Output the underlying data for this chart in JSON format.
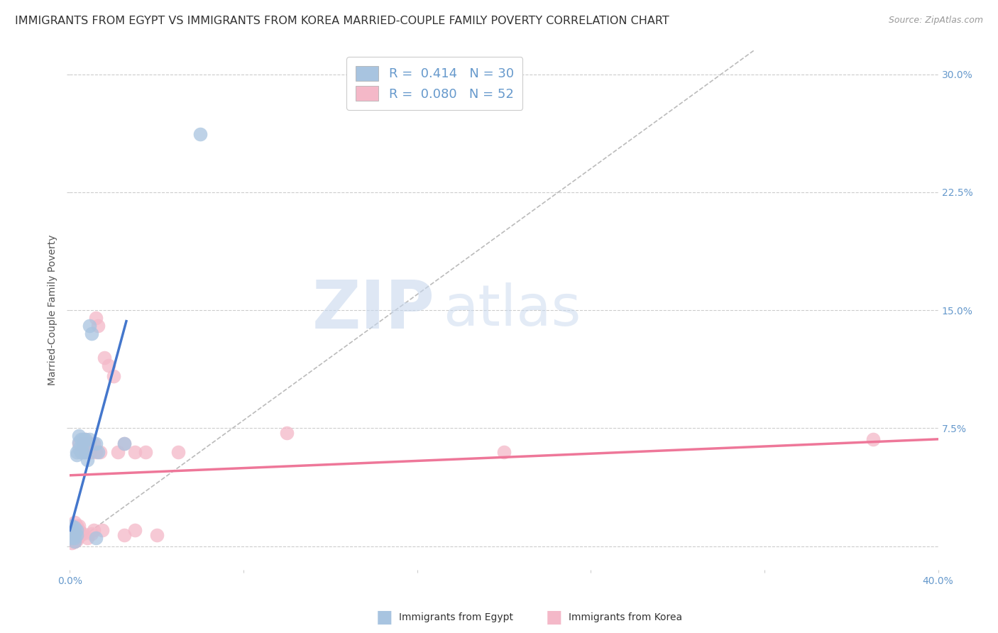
{
  "title": "IMMIGRANTS FROM EGYPT VS IMMIGRANTS FROM KOREA MARRIED-COUPLE FAMILY POVERTY CORRELATION CHART",
  "source": "Source: ZipAtlas.com",
  "ylabel": "Married-Couple Family Poverty",
  "xlim": [
    0.0,
    0.4
  ],
  "ylim": [
    -0.015,
    0.315
  ],
  "xticks": [
    0.0,
    0.08,
    0.16,
    0.24,
    0.32,
    0.4
  ],
  "ytick_positions": [
    0.0,
    0.075,
    0.15,
    0.225,
    0.3
  ],
  "ytick_labels": [
    "",
    "7.5%",
    "15.0%",
    "22.5%",
    "30.0%"
  ],
  "egypt_color": "#a8c4e0",
  "korea_color": "#f4b8c8",
  "egypt_line_color": "#4477cc",
  "korea_line_color": "#ee7799",
  "egypt_R": 0.414,
  "egypt_N": 30,
  "korea_R": 0.08,
  "korea_N": 52,
  "egypt_scatter": [
    [
      0.001,
      0.005
    ],
    [
      0.001,
      0.01
    ],
    [
      0.001,
      0.013
    ],
    [
      0.002,
      0.005
    ],
    [
      0.002,
      0.008
    ],
    [
      0.002,
      0.012
    ],
    [
      0.002,
      0.003
    ],
    [
      0.003,
      0.007
    ],
    [
      0.003,
      0.01
    ],
    [
      0.003,
      0.06
    ],
    [
      0.003,
      0.058
    ],
    [
      0.004,
      0.062
    ],
    [
      0.004,
      0.066
    ],
    [
      0.004,
      0.07
    ],
    [
      0.005,
      0.06
    ],
    [
      0.005,
      0.068
    ],
    [
      0.006,
      0.06
    ],
    [
      0.006,
      0.065
    ],
    [
      0.006,
      0.068
    ],
    [
      0.007,
      0.06
    ],
    [
      0.007,
      0.068
    ],
    [
      0.008,
      0.055
    ],
    [
      0.009,
      0.068
    ],
    [
      0.009,
      0.14
    ],
    [
      0.01,
      0.135
    ],
    [
      0.012,
      0.005
    ],
    [
      0.012,
      0.065
    ],
    [
      0.013,
      0.06
    ],
    [
      0.06,
      0.262
    ],
    [
      0.025,
      0.065
    ]
  ],
  "korea_scatter": [
    [
      0.001,
      0.002
    ],
    [
      0.001,
      0.005
    ],
    [
      0.001,
      0.008
    ],
    [
      0.001,
      0.01
    ],
    [
      0.002,
      0.003
    ],
    [
      0.002,
      0.006
    ],
    [
      0.002,
      0.008
    ],
    [
      0.002,
      0.012
    ],
    [
      0.002,
      0.015
    ],
    [
      0.002,
      0.003
    ],
    [
      0.003,
      0.004
    ],
    [
      0.003,
      0.007
    ],
    [
      0.003,
      0.01
    ],
    [
      0.003,
      0.013
    ],
    [
      0.003,
      0.005
    ],
    [
      0.004,
      0.006
    ],
    [
      0.004,
      0.01
    ],
    [
      0.004,
      0.013
    ],
    [
      0.004,
      0.065
    ],
    [
      0.005,
      0.008
    ],
    [
      0.005,
      0.06
    ],
    [
      0.006,
      0.065
    ],
    [
      0.006,
      0.008
    ],
    [
      0.007,
      0.06
    ],
    [
      0.007,
      0.068
    ],
    [
      0.008,
      0.005
    ],
    [
      0.008,
      0.065
    ],
    [
      0.009,
      0.06
    ],
    [
      0.009,
      0.065
    ],
    [
      0.01,
      0.008
    ],
    [
      0.01,
      0.06
    ],
    [
      0.011,
      0.065
    ],
    [
      0.011,
      0.01
    ],
    [
      0.012,
      0.06
    ],
    [
      0.012,
      0.145
    ],
    [
      0.013,
      0.14
    ],
    [
      0.014,
      0.06
    ],
    [
      0.015,
      0.01
    ],
    [
      0.016,
      0.12
    ],
    [
      0.018,
      0.115
    ],
    [
      0.02,
      0.108
    ],
    [
      0.022,
      0.06
    ],
    [
      0.025,
      0.007
    ],
    [
      0.025,
      0.065
    ],
    [
      0.03,
      0.01
    ],
    [
      0.03,
      0.06
    ],
    [
      0.035,
      0.06
    ],
    [
      0.04,
      0.007
    ],
    [
      0.05,
      0.06
    ],
    [
      0.1,
      0.072
    ],
    [
      0.2,
      0.06
    ],
    [
      0.37,
      0.068
    ]
  ],
  "egypt_line_x": [
    0.0,
    0.026
  ],
  "egypt_line_y": [
    0.01,
    0.143
  ],
  "korea_line_x": [
    0.0,
    0.4
  ],
  "korea_line_y": [
    0.045,
    0.068
  ],
  "diag_line_x": [
    0.0,
    0.315
  ],
  "diag_line_y": [
    0.0,
    0.315
  ],
  "watermark_zip": "ZIP",
  "watermark_atlas": "atlas",
  "background_color": "#ffffff",
  "grid_color": "#cccccc",
  "title_color": "#333333",
  "right_label_color": "#6699cc",
  "axis_label_color": "#555555",
  "title_fontsize": 11.5,
  "axis_fontsize": 10,
  "legend_fontsize": 13,
  "source_fontsize": 9,
  "tick_label_color": "#6699cc"
}
